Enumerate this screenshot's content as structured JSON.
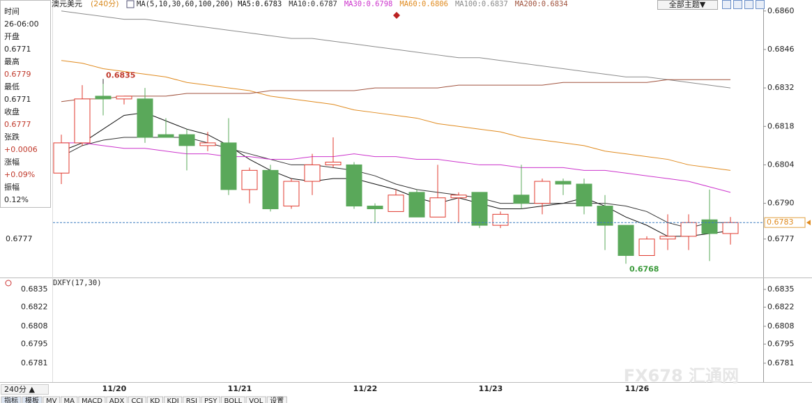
{
  "chart_data": [
    {
      "type": "candlestick",
      "title": "澳元美元",
      "period": "(240分)",
      "indicator": "MA(5,10,30,60,100,200)",
      "categories": [
        null,
        null,
        null,
        "11/20",
        null,
        null,
        null,
        null,
        null,
        "11/21",
        null,
        null,
        null,
        null,
        null,
        "11/22",
        null,
        null,
        null,
        null,
        null,
        "11/23",
        null,
        null,
        null,
        null,
        null,
        null,
        "11/26",
        null,
        null,
        null,
        null
      ],
      "open": [
        0.6801,
        0.6812,
        0.6829,
        0.6828,
        0.6828,
        0.6815,
        0.6815,
        0.6811,
        0.6812,
        0.6795,
        0.6802,
        0.6789,
        0.6798,
        0.6804,
        0.6804,
        0.6789,
        0.6787,
        0.6794,
        0.6785,
        0.6792,
        0.6794,
        0.6782,
        0.6793,
        0.679,
        0.6798,
        0.6797,
        0.6789,
        0.6782,
        0.6771,
        0.6777,
        0.6778,
        0.6784,
        0.6779
      ],
      "high": [
        0.6815,
        0.6833,
        0.6835,
        0.6829,
        0.6832,
        0.6821,
        0.6817,
        0.6816,
        0.6821,
        0.6803,
        0.6804,
        0.6799,
        0.6808,
        0.6814,
        0.6805,
        0.679,
        0.6795,
        0.6795,
        0.6804,
        0.6794,
        0.6794,
        0.6787,
        0.6804,
        0.6799,
        0.6799,
        0.6799,
        0.6793,
        0.6782,
        0.6778,
        0.6786,
        0.6786,
        0.6795,
        0.6785
      ],
      "low": [
        0.6797,
        0.6811,
        0.6822,
        0.6826,
        0.6812,
        0.6814,
        0.6802,
        0.6809,
        0.6793,
        0.679,
        0.6787,
        0.6788,
        0.6793,
        0.6803,
        0.6788,
        0.6783,
        0.6787,
        0.6785,
        0.6785,
        0.6783,
        0.6781,
        0.6781,
        0.6788,
        0.6786,
        0.6793,
        0.6786,
        0.6773,
        0.6768,
        0.6771,
        0.6773,
        0.6773,
        0.6769,
        0.6775
      ],
      "close": [
        0.6812,
        0.6828,
        0.6828,
        0.6829,
        0.6814,
        0.6814,
        0.6811,
        0.6812,
        0.6795,
        0.6802,
        0.6788,
        0.6798,
        0.6804,
        0.6805,
        0.6789,
        0.6788,
        0.6793,
        0.6785,
        0.6792,
        0.6793,
        0.6782,
        0.6786,
        0.679,
        0.6798,
        0.6797,
        0.6789,
        0.6782,
        0.6771,
        0.6777,
        0.6778,
        0.6783,
        0.6779,
        0.6783
      ],
      "up_color": "#e0392e",
      "down_color": "#5aa85a",
      "high_label_index": 2,
      "low_label_index": 27,
      "current_price": 0.6783,
      "series": [
        {
          "name": "MA5:0.6783",
          "color": "#111111",
          "values": [
            0.6809,
            0.6812,
            0.6817,
            0.6822,
            0.6823,
            0.682,
            0.6817,
            0.6815,
            0.6811,
            0.6806,
            0.6802,
            0.6799,
            0.6798,
            0.6799,
            0.6799,
            0.6797,
            0.6795,
            0.6792,
            0.679,
            0.6792,
            0.679,
            0.6788,
            0.6788,
            0.6789,
            0.679,
            0.6792,
            0.6789,
            0.6785,
            0.6782,
            0.6778,
            0.6778,
            0.6779,
            0.678
          ]
        },
        {
          "name": "MA10:0.6787",
          "color": "#333333",
          "values": [
            0.6807,
            0.6811,
            0.6813,
            0.6814,
            0.6814,
            0.6814,
            0.6814,
            0.6812,
            0.681,
            0.6808,
            0.6806,
            0.6804,
            0.6804,
            0.6803,
            0.6802,
            0.68,
            0.6797,
            0.6795,
            0.6794,
            0.6793,
            0.6792,
            0.679,
            0.679,
            0.679,
            0.679,
            0.679,
            0.679,
            0.6789,
            0.6787,
            0.6783,
            0.6781,
            0.6783,
            0.6783
          ]
        },
        {
          "name": "MA30:0.6798",
          "color": "#cc33cc",
          "values": [
            0.6812,
            0.6812,
            0.6811,
            0.681,
            0.681,
            0.6809,
            0.6808,
            0.6808,
            0.6807,
            0.6807,
            0.6806,
            0.6806,
            0.6807,
            0.6807,
            0.6808,
            0.6807,
            0.6807,
            0.6806,
            0.6806,
            0.6805,
            0.6804,
            0.6804,
            0.6803,
            0.6803,
            0.6803,
            0.6802,
            0.6802,
            0.6801,
            0.68,
            0.6799,
            0.6798,
            0.6796,
            0.6794
          ]
        },
        {
          "name": "MA60:0.6806",
          "color": "#e08a1e",
          "values": [
            0.6842,
            0.6841,
            0.6839,
            0.6838,
            0.6837,
            0.6836,
            0.6834,
            0.6833,
            0.6832,
            0.6831,
            0.6829,
            0.6828,
            0.6827,
            0.6826,
            0.6824,
            0.6823,
            0.6822,
            0.6821,
            0.6819,
            0.6818,
            0.6817,
            0.6816,
            0.6814,
            0.6813,
            0.6812,
            0.6811,
            0.6809,
            0.6808,
            0.6807,
            0.6806,
            0.6804,
            0.6803,
            0.6802
          ]
        },
        {
          "name": "MA100:0.6837",
          "color": "#8a8a8a",
          "values": [
            0.686,
            0.6859,
            0.6858,
            0.6857,
            0.6857,
            0.6856,
            0.6855,
            0.6854,
            0.6853,
            0.6852,
            0.6851,
            0.685,
            0.685,
            0.6849,
            0.6848,
            0.6847,
            0.6846,
            0.6845,
            0.6844,
            0.6843,
            0.6843,
            0.6842,
            0.6841,
            0.684,
            0.6839,
            0.6838,
            0.6837,
            0.6836,
            0.6836,
            0.6835,
            0.6834,
            0.6833,
            0.6832
          ]
        },
        {
          "name": "MA200:0.6834",
          "color": "#a0523d",
          "values": [
            0.6827,
            0.6828,
            0.6828,
            0.6829,
            0.6829,
            0.6829,
            0.683,
            0.683,
            0.683,
            0.683,
            0.6831,
            0.6831,
            0.6831,
            0.6831,
            0.6831,
            0.6832,
            0.6832,
            0.6832,
            0.6832,
            0.6833,
            0.6833,
            0.6833,
            0.6833,
            0.6833,
            0.6834,
            0.6834,
            0.6834,
            0.6834,
            0.6834,
            0.6835,
            0.6835,
            0.6835,
            0.6835
          ]
        }
      ],
      "ylim": [
        0.6763,
        0.6864
      ],
      "yticks": [
        {
          "value": 0.686,
          "label": "0.6860"
        },
        0.6846,
        0.6832,
        0.6818,
        0.6804,
        {
          "value": 0.679,
          "label": "0.6790"
        },
        0.6777
      ]
    },
    {
      "type": "indicator",
      "title": "DXFY(17,30)",
      "ylim": [
        0.67672,
        0.68437
      ],
      "yticks": [
        0.6835,
        0.6822,
        0.6808,
        0.6795,
        0.6781
      ]
    }
  ],
  "info_panel": [
    {
      "label": "时间",
      "value": "26-06:00"
    },
    {
      "label": "开盘",
      "value": "0.6771"
    },
    {
      "label": "最高",
      "value": "0.6779"
    },
    {
      "label": "最低",
      "value": "0.6771"
    },
    {
      "label": "收盘",
      "value": "0.6777"
    },
    {
      "label": "张跌",
      "value": "+0.0006"
    },
    {
      "label": "涨幅",
      "value": "+0.09%"
    },
    {
      "label": "振幅",
      "value": "0.12%"
    }
  ],
  "theme_button": "全部主题▼",
  "period_selector": "240分 ▲",
  "tabs": [
    "指标",
    "模板",
    "MV",
    "MA",
    "MACD",
    "ADX",
    "CCI",
    "KD",
    "KDJ",
    "RSI",
    "PSY",
    "BOLL",
    "VOL",
    "设置"
  ],
  "watermark": "FX678 汇通网"
}
